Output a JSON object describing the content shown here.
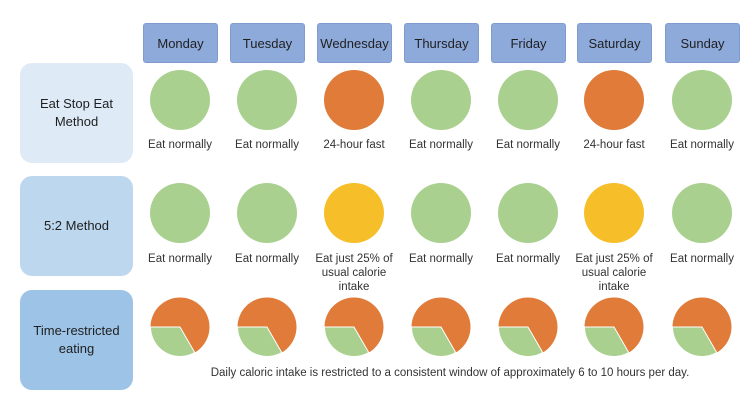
{
  "days": [
    "Monday",
    "Tuesday",
    "Wednesday",
    "Thursday",
    "Friday",
    "Saturday",
    "Sunday"
  ],
  "methods": [
    {
      "name": "Eat Stop Eat Method",
      "bg": "#deebf7",
      "cells": [
        {
          "color": "#a9d08e",
          "caption": "Eat normally"
        },
        {
          "color": "#a9d08e",
          "caption": "Eat normally"
        },
        {
          "color": "#e07b39",
          "caption": "24-hour fast"
        },
        {
          "color": "#a9d08e",
          "caption": "Eat normally"
        },
        {
          "color": "#a9d08e",
          "caption": "Eat normally"
        },
        {
          "color": "#e07b39",
          "caption": "24-hour fast"
        },
        {
          "color": "#a9d08e",
          "caption": "Eat normally"
        }
      ]
    },
    {
      "name": "5:2 Method",
      "bg": "#bdd7ee",
      "cells": [
        {
          "color": "#a9d08e",
          "caption": "Eat normally"
        },
        {
          "color": "#a9d08e",
          "caption": "Eat normally"
        },
        {
          "color": "#f6bf2a",
          "caption": "Eat just 25% of usual calorie intake"
        },
        {
          "color": "#a9d08e",
          "caption": "Eat normally"
        },
        {
          "color": "#a9d08e",
          "caption": "Eat normally"
        },
        {
          "color": "#f6bf2a",
          "caption": "Eat just 25% of usual calorie intake"
        },
        {
          "color": "#a9d08e",
          "caption": "Eat normally"
        }
      ]
    },
    {
      "name": "Time-restricted eating",
      "bg": "#9dc3e6",
      "pie": {
        "fast_color": "#e07b39",
        "eat_color": "#a9d08e",
        "eating_fraction": 0.33
      },
      "footnote": "Daily caloric intake is restricted to a consistent window of approximately 6 to 10 hours per day."
    }
  ],
  "colors": {
    "day_header": "#8eaadb"
  }
}
